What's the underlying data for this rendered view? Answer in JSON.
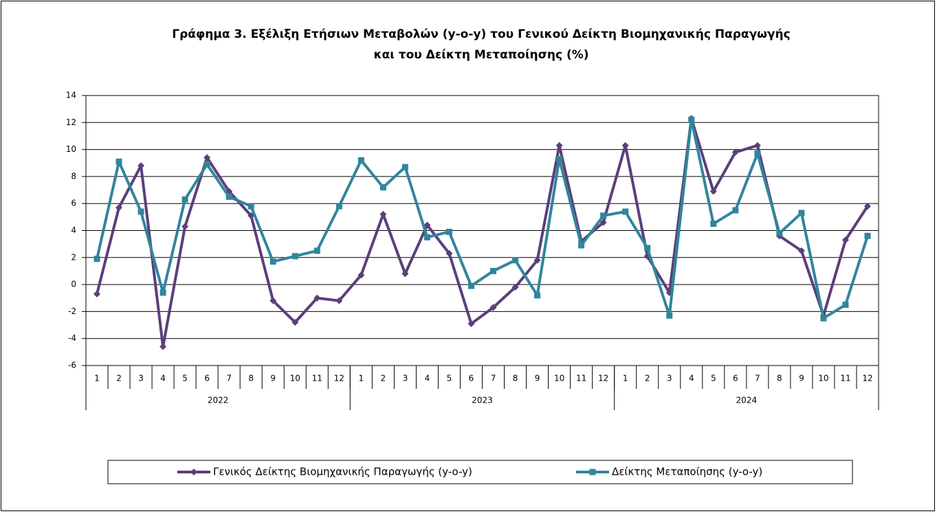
{
  "chart_data": {
    "type": "line",
    "title": [
      "Γράφημα 3. Εξέλιξη Ετήσιων Μεταβολών (y-o-y) του Γενικού Δείκτη Βιομηχανικής Παραγωγής",
      "και του Δείκτη Μεταποίησης (%)"
    ],
    "categories": [
      "1",
      "2",
      "3",
      "4",
      "5",
      "6",
      "7",
      "8",
      "9",
      "10",
      "11",
      "12",
      "1",
      "2",
      "3",
      "4",
      "5",
      "6",
      "7",
      "8",
      "9",
      "10",
      "11",
      "12",
      "1",
      "2",
      "3",
      "4",
      "5",
      "6",
      "7",
      "8",
      "9",
      "10",
      "11",
      "12"
    ],
    "x_groups": [
      "2022",
      "2023",
      "2024"
    ],
    "series": [
      {
        "name": "Γενικός Δείκτης Βιομηχανικής Παραγωγής (y-o-y)",
        "color": "#5b3f7a",
        "marker": "diamond",
        "values": [
          -0.7,
          5.7,
          8.8,
          -4.6,
          4.3,
          9.4,
          6.9,
          5.1,
          -1.2,
          -2.8,
          -1.0,
          -1.2,
          0.7,
          5.2,
          0.8,
          4.4,
          2.3,
          -2.9,
          -1.7,
          -0.2,
          1.8,
          10.3,
          3.2,
          4.6,
          10.3,
          2.1,
          -0.6,
          12.3,
          6.9,
          9.8,
          10.3,
          3.6,
          2.5,
          -2.3,
          3.3,
          5.8
        ]
      },
      {
        "name": "Δείκτης Μεταποίησης (y-o-y)",
        "color": "#31859c",
        "marker": "square",
        "values": [
          1.9,
          9.1,
          5.4,
          -0.6,
          6.3,
          8.9,
          6.5,
          5.8,
          1.7,
          2.1,
          2.5,
          5.8,
          9.2,
          7.2,
          8.7,
          3.5,
          3.9,
          -0.1,
          1.0,
          1.8,
          -0.8,
          9.3,
          2.9,
          5.1,
          5.4,
          2.7,
          -2.3,
          12.2,
          4.5,
          5.5,
          9.7,
          3.8,
          5.3,
          -2.5,
          -1.5,
          3.6
        ]
      }
    ],
    "ylim": [
      -6,
      14
    ],
    "yticks": [
      -6,
      -4,
      -2,
      0,
      2,
      4,
      6,
      8,
      10,
      12,
      14
    ],
    "grid": true
  }
}
